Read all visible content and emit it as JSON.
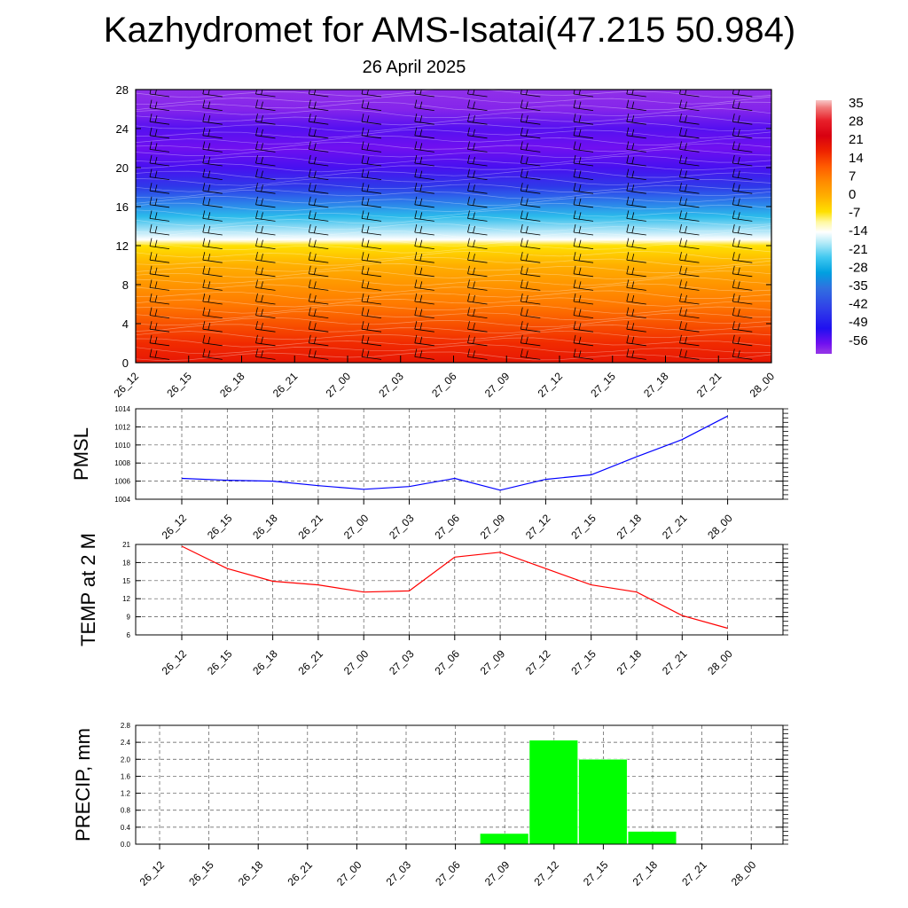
{
  "title": "Kazhydromet for AMS-Isatai(47.215 50.984)",
  "subtitle": "26 April 2025",
  "colors": {
    "pmsl_line": "#0000ff",
    "temp_line": "#ff0000",
    "precip_bar": "#00ff00"
  },
  "chart_data": [
    {
      "type": "heatmap",
      "title": "",
      "x": [
        "26_12",
        "26_15",
        "26_18",
        "26_21",
        "27_00",
        "27_03",
        "27_06",
        "27_09",
        "27_12",
        "27_15",
        "27_18",
        "27_21",
        "28_00"
      ],
      "yticks": [
        0,
        4,
        8,
        12,
        16,
        20,
        24,
        28
      ],
      "ylim": [
        0,
        28
      ],
      "xlabel": "",
      "ylabel": "",
      "colorbar_labels": [
        "35",
        "28",
        "21",
        "14",
        "7",
        "0",
        "-7",
        "-14",
        "-21",
        "-28",
        "-35",
        "-42",
        "-49",
        "-56"
      ],
      "colorbar_stops": [
        {
          "v": 38,
          "c": "#f8c8c8"
        },
        {
          "v": 35,
          "c": "#f07878"
        },
        {
          "v": 30,
          "c": "#e8202a"
        },
        {
          "v": 24,
          "c": "#d80010"
        },
        {
          "v": 18,
          "c": "#ee2200"
        },
        {
          "v": 12,
          "c": "#ff5a00"
        },
        {
          "v": 6,
          "c": "#ff8a00"
        },
        {
          "v": 0,
          "c": "#ffb000"
        },
        {
          "v": -6,
          "c": "#ffe000"
        },
        {
          "v": -10,
          "c": "#fff8a0"
        },
        {
          "v": -14,
          "c": "#ffffff"
        },
        {
          "v": -18,
          "c": "#b8ecf8"
        },
        {
          "v": -24,
          "c": "#40c8f0"
        },
        {
          "v": -30,
          "c": "#00a0e0"
        },
        {
          "v": -36,
          "c": "#3070e0"
        },
        {
          "v": -44,
          "c": "#3040e8"
        },
        {
          "v": -52,
          "c": "#2010f0"
        },
        {
          "v": -58,
          "c": "#7010f0"
        },
        {
          "v": -61,
          "c": "#9030e8"
        }
      ],
      "profile": [
        {
          "h": 0,
          "t": 20
        },
        {
          "h": 2,
          "t": 17
        },
        {
          "h": 6,
          "t": 8
        },
        {
          "h": 10,
          "t": 0
        },
        {
          "h": 12,
          "t": -6
        },
        {
          "h": 12.6,
          "t": -14
        },
        {
          "h": 15,
          "t": -26
        },
        {
          "h": 18,
          "t": -45
        },
        {
          "h": 20,
          "t": -55
        },
        {
          "h": 22,
          "t": -58
        },
        {
          "h": 24,
          "t": -56
        },
        {
          "h": 26,
          "t": -60
        },
        {
          "h": 28,
          "t": -61
        }
      ]
    },
    {
      "type": "line",
      "ylabel": "PMSL",
      "x": [
        "26_12",
        "26_15",
        "26_18",
        "26_21",
        "27_00",
        "27_03",
        "27_06",
        "27_09",
        "27_12",
        "27_15",
        "27_18",
        "27_21",
        "28_00"
      ],
      "series": [
        {
          "values": [
            1006.3,
            1006.1,
            1006.0,
            1005.5,
            1005.1,
            1005.4,
            1006.3,
            1005.0,
            1006.2,
            1006.7,
            1008.7,
            1010.6,
            1013.2
          ]
        }
      ],
      "ylim": [
        1004,
        1014
      ],
      "yticks": [
        1004,
        1006,
        1008,
        1010,
        1012,
        1014
      ],
      "grid": true
    },
    {
      "type": "line",
      "ylabel": "TEMP at 2 M",
      "x": [
        "26_12",
        "26_15",
        "26_18",
        "26_21",
        "27_00",
        "27_03",
        "27_06",
        "27_09",
        "27_12",
        "27_15",
        "27_18",
        "27_21",
        "28_00"
      ],
      "series": [
        {
          "values": [
            20.7,
            17.0,
            14.9,
            14.3,
            13.1,
            13.3,
            18.9,
            19.7,
            17.0,
            14.3,
            13.1,
            9.2,
            7.1
          ]
        }
      ],
      "ylim": [
        6,
        21
      ],
      "yticks": [
        6,
        9,
        12,
        15,
        18,
        21
      ],
      "grid": true
    },
    {
      "type": "bar",
      "ylabel": "PRECIP, mm",
      "categories": [
        "26_12",
        "26_15",
        "26_18",
        "26_21",
        "27_00",
        "27_03",
        "27_06",
        "27_09",
        "27_12",
        "27_15",
        "27_18",
        "27_21",
        "28_00"
      ],
      "values": [
        0,
        0,
        0,
        0,
        0,
        0,
        0,
        0.25,
        2.45,
        2.0,
        0.3,
        0,
        0
      ],
      "ylim": [
        0,
        2.8
      ],
      "yticks": [
        "0.0",
        "0.4",
        "0.8",
        "1.2",
        "1.6",
        "2.0",
        "2.4",
        "2.8"
      ],
      "grid": true
    }
  ]
}
